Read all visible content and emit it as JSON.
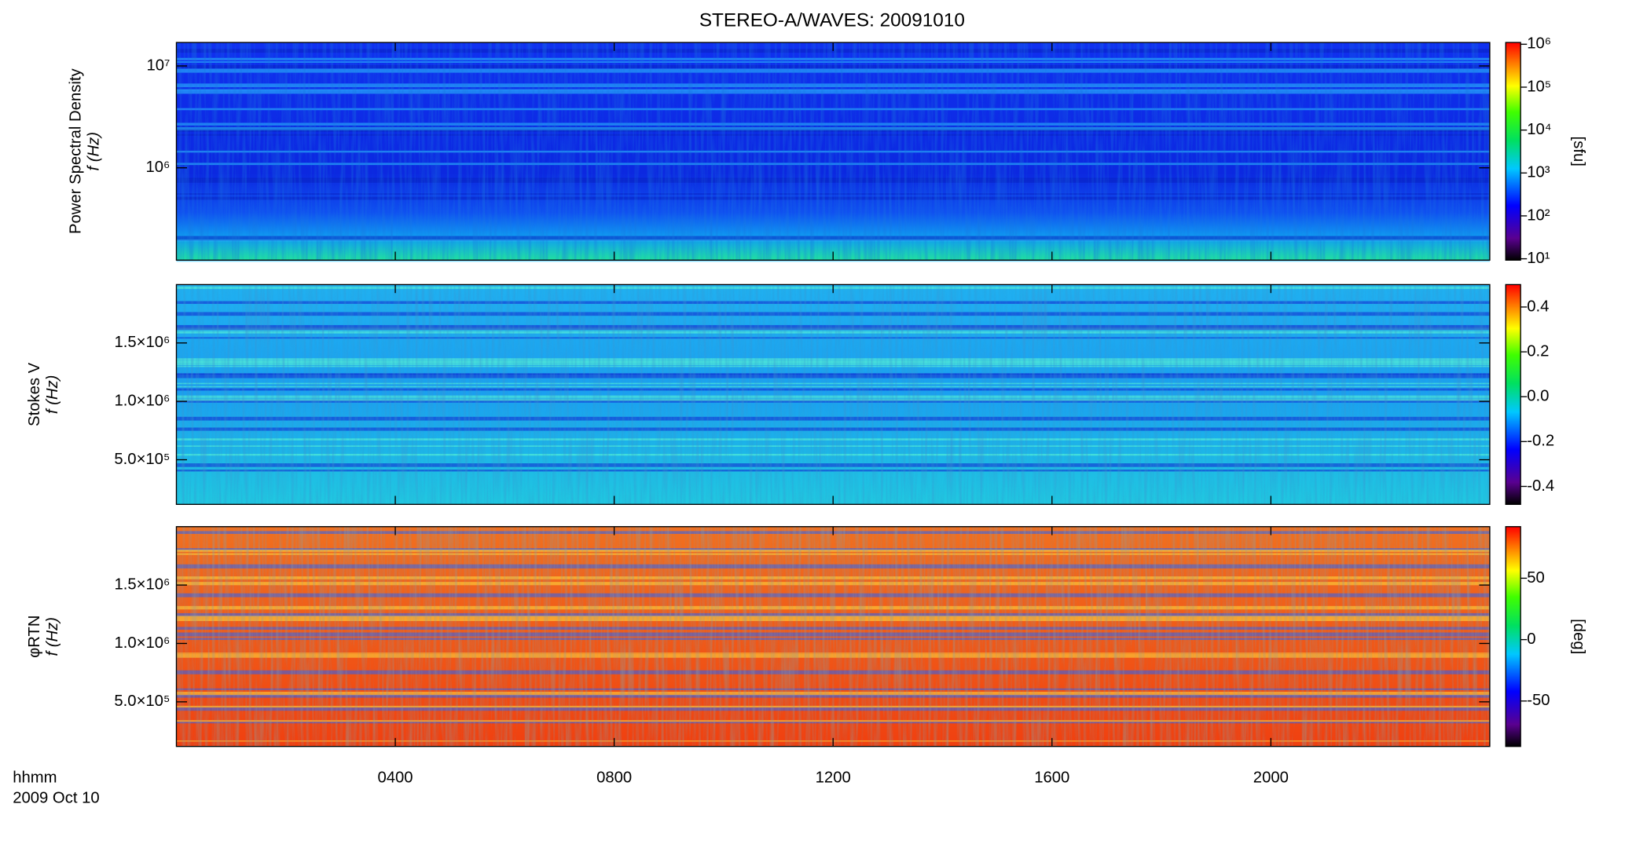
{
  "title": "STEREO-A/WAVES: 20091010",
  "xaxis": {
    "xlim": [
      0,
      24
    ],
    "xticks": [
      {
        "value": 4,
        "label": "0400"
      },
      {
        "value": 8,
        "label": "0800"
      },
      {
        "value": 12,
        "label": "1200"
      },
      {
        "value": 16,
        "label": "1600"
      },
      {
        "value": 20,
        "label": "2000"
      }
    ],
    "xlabel": [
      "hhmm",
      "2009 Oct 10"
    ]
  },
  "chart_data": [
    {
      "type": "spectrogram",
      "colormap": "rainbow",
      "ylabel": [
        "Power Spectral Density",
        "f (Hz)"
      ],
      "ylog": true,
      "ylim": [
        124000,
        17000000
      ],
      "yticks": [
        {
          "value": 1000000,
          "label": "10⁶"
        },
        {
          "value": 10000000,
          "label": "10⁷"
        }
      ],
      "zlog": true,
      "zlim": [
        9.3,
        1100000
      ],
      "zticks": [
        {
          "value": 10,
          "label": "10¹"
        },
        {
          "value": 100,
          "label": "10²"
        },
        {
          "value": 1000,
          "label": "10³"
        },
        {
          "value": 10000,
          "label": "10⁴"
        },
        {
          "value": 100000,
          "label": "10⁵"
        },
        {
          "value": 1000000,
          "label": "10⁶"
        }
      ],
      "zlabel": "[sfu]"
    },
    {
      "type": "spectrogram",
      "colormap": "rainbow",
      "ylabel": [
        "Stokes V",
        "f (Hz)"
      ],
      "ylog": false,
      "ylim": [
        118000,
        2000000
      ],
      "yticks": [
        {
          "value": 500000,
          "label": "5.0×10⁵"
        },
        {
          "value": 1000000,
          "label": "1.0×10⁶"
        },
        {
          "value": 1500000,
          "label": "1.5×10⁶"
        }
      ],
      "zlog": false,
      "zlim": [
        -0.48,
        0.5
      ],
      "zticks": [
        {
          "value": -0.4,
          "label": "-0.4"
        },
        {
          "value": -0.2,
          "label": "-0.2"
        },
        {
          "value": 0,
          "label": "0.0"
        },
        {
          "value": 0.2,
          "label": "0.2"
        },
        {
          "value": 0.4,
          "label": "0.4"
        }
      ]
    },
    {
      "type": "spectrogram",
      "colormap": "rainbow",
      "ylabel": [
        "φRTN",
        "f (Hz)"
      ],
      "ylog": false,
      "ylim": [
        118000,
        2000000
      ],
      "yticks": [
        {
          "value": 500000,
          "label": "5.0×10⁵"
        },
        {
          "value": 1000000,
          "label": "1.0×10⁶"
        },
        {
          "value": 1500000,
          "label": "1.5×10⁶"
        }
      ],
      "zlog": false,
      "zlim": [
        -87,
        92
      ],
      "zticks": [
        -50,
        0,
        50
      ],
      "zlabel": "[deg]"
    }
  ]
}
